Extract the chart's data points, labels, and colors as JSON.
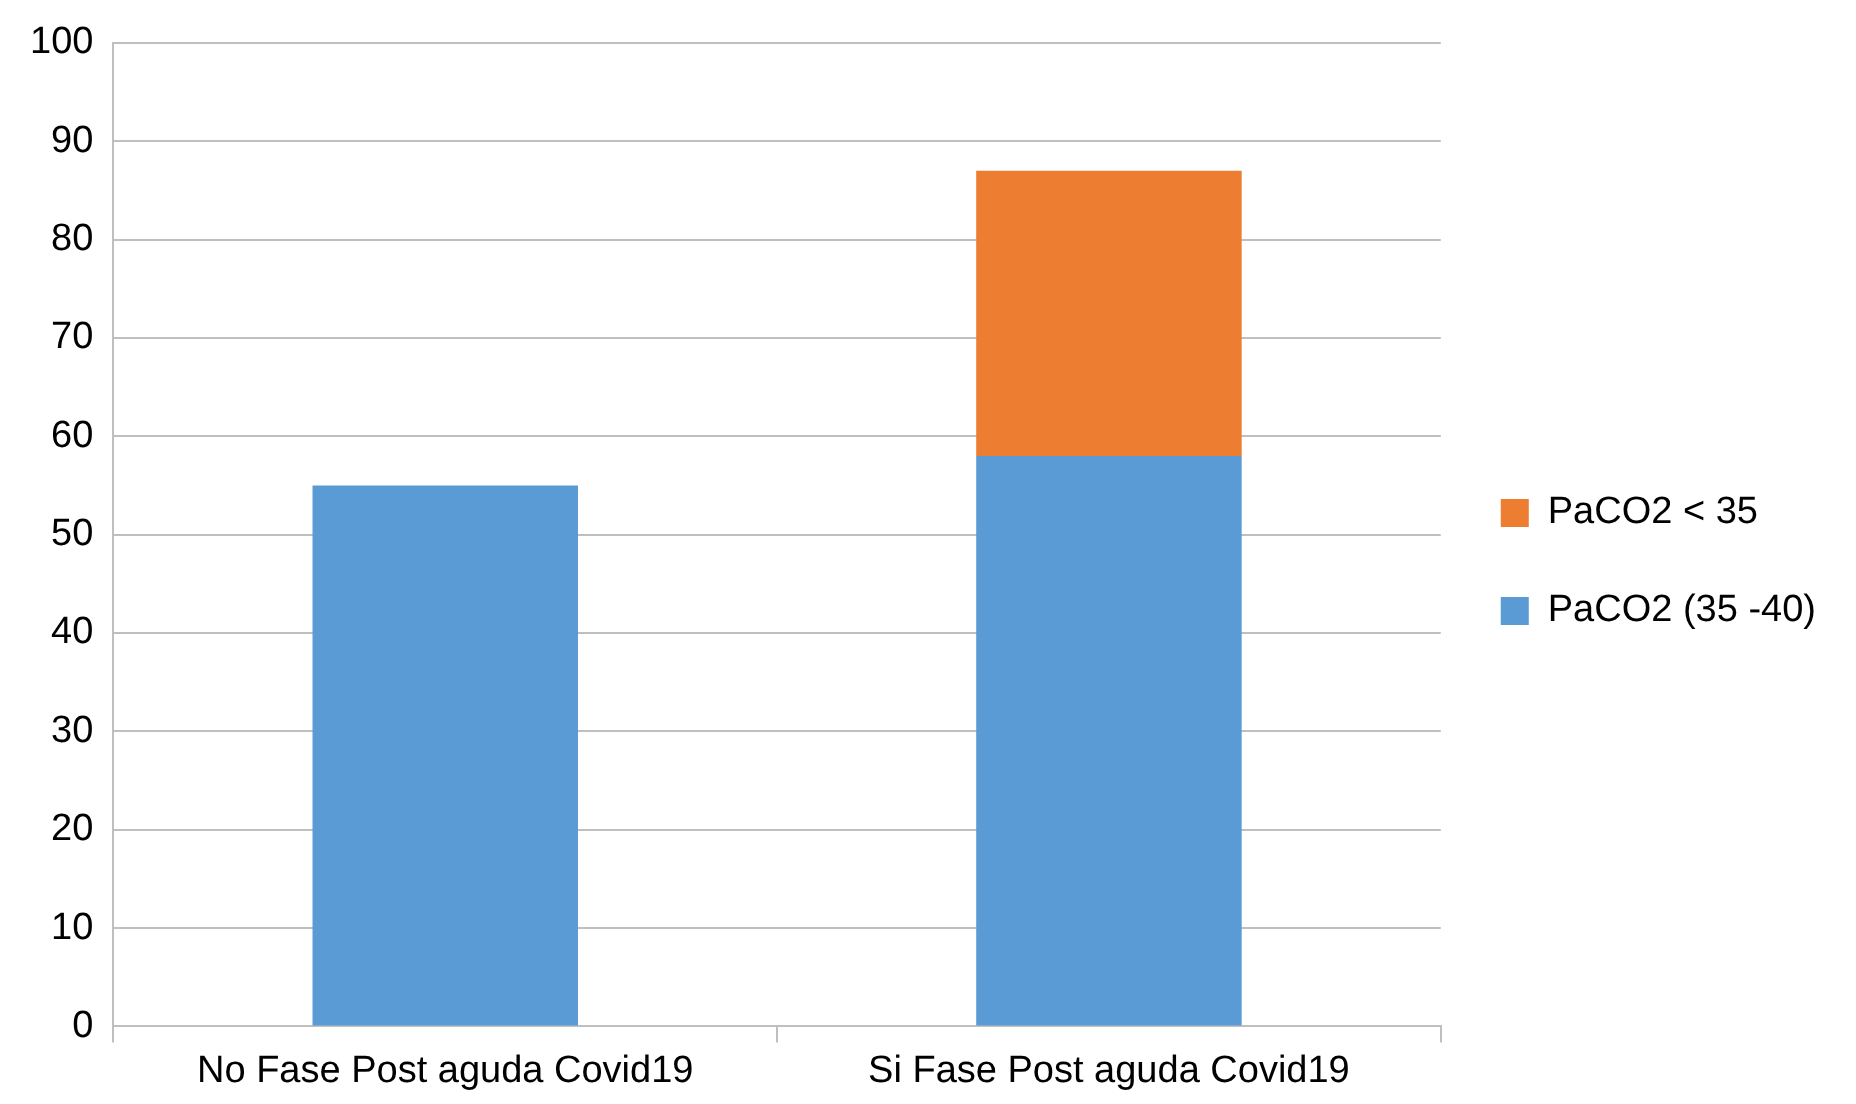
{
  "chart_data": {
    "type": "bar",
    "stacked": true,
    "categories": [
      "No Fase Post aguda Covid19",
      "Si Fase Post aguda Covid19"
    ],
    "series": [
      {
        "name": "PaCO2 (35 -40)",
        "color": "#5b9bd5",
        "values": [
          55,
          58
        ]
      },
      {
        "name": "PaCO2 < 35",
        "color": "#ed7d31",
        "values": [
          null,
          29
        ]
      }
    ],
    "ylim": [
      0,
      100
    ],
    "yticks": [
      0,
      10,
      20,
      30,
      40,
      50,
      60,
      70,
      80,
      90,
      100
    ],
    "grid": "y",
    "legend": "right"
  }
}
